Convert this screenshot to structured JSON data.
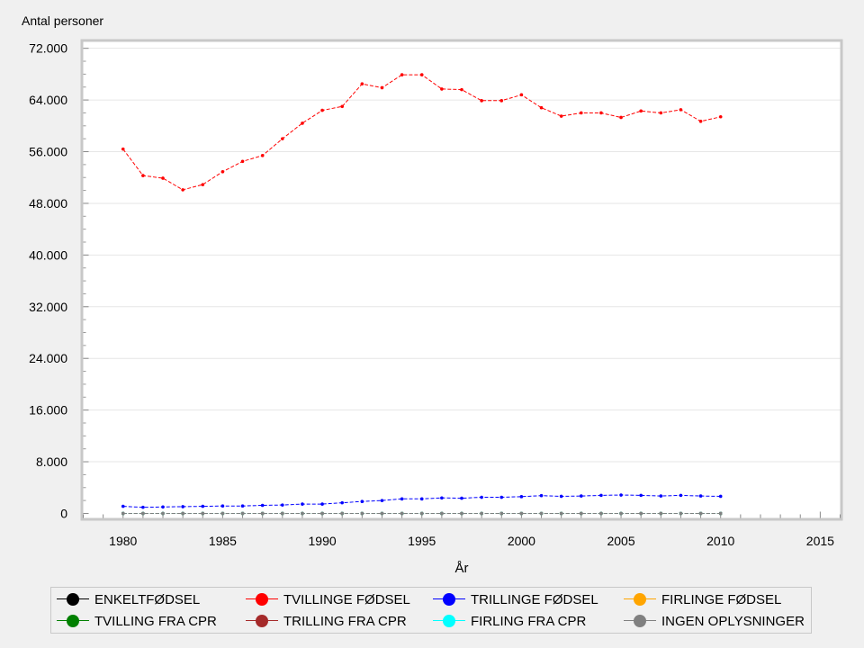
{
  "chart_data": {
    "type": "line",
    "ylabel": "Antal personer",
    "xlabel": "År",
    "xlim": [
      1978,
      2016
    ],
    "ylim": [
      -700,
      73000
    ],
    "x_ticks": [
      1980,
      1985,
      1990,
      1995,
      2000,
      2005,
      2010,
      2015
    ],
    "y_ticks": [
      0,
      8000,
      16000,
      24000,
      32000,
      40000,
      48000,
      56000,
      64000,
      72000
    ],
    "y_tick_labels": [
      "0",
      "8.000",
      "16.000",
      "24.000",
      "32.000",
      "40.000",
      "48.000",
      "56.000",
      "64.000",
      "72.000"
    ],
    "grid": "horizontal",
    "legend_position": "bottom",
    "x": [
      1980,
      1981,
      1982,
      1983,
      1984,
      1985,
      1986,
      1987,
      1988,
      1989,
      1990,
      1991,
      1992,
      1993,
      1994,
      1995,
      1996,
      1997,
      1998,
      1999,
      2000,
      2001,
      2002,
      2003,
      2004,
      2005,
      2006,
      2007,
      2008,
      2009,
      2010
    ],
    "series": [
      {
        "name": "ENKELTFØDSEL",
        "color": "#000000",
        "values": [
          0,
          0,
          0,
          0,
          0,
          0,
          0,
          0,
          0,
          0,
          0,
          0,
          0,
          0,
          0,
          0,
          0,
          0,
          0,
          0,
          0,
          0,
          0,
          0,
          0,
          0,
          0,
          0,
          0,
          0,
          0
        ]
      },
      {
        "name": "TVILLINGE FØDSEL",
        "color": "#ff0000",
        "values": [
          56400,
          52300,
          51900,
          50100,
          50900,
          52900,
          54500,
          55400,
          58000,
          60400,
          62400,
          63000,
          66500,
          65900,
          67900,
          67900,
          65700,
          65600,
          63900,
          63900,
          64800,
          62800,
          61500,
          62000,
          62000,
          61300,
          62300,
          62000,
          62500,
          60700,
          61400
        ]
      },
      {
        "name": "TRILLINGE FØDSEL",
        "color": "#0000ff",
        "values": [
          1100,
          950,
          1000,
          1050,
          1100,
          1150,
          1150,
          1250,
          1300,
          1450,
          1450,
          1650,
          1850,
          2000,
          2250,
          2250,
          2400,
          2350,
          2500,
          2500,
          2600,
          2750,
          2650,
          2700,
          2800,
          2850,
          2800,
          2700,
          2800,
          2700,
          2650
        ]
      },
      {
        "name": "FIRLINGE FØDSEL",
        "color": "#ffa500",
        "values": [
          0,
          0,
          0,
          0,
          0,
          0,
          0,
          0,
          0,
          0,
          0,
          0,
          0,
          0,
          0,
          0,
          0,
          0,
          0,
          0,
          0,
          0,
          0,
          0,
          0,
          0,
          0,
          0,
          0,
          0,
          0
        ]
      },
      {
        "name": "TVILLING FRA CPR",
        "color": "#008000",
        "values": [
          0,
          0,
          0,
          0,
          0,
          0,
          0,
          0,
          0,
          0,
          0,
          0,
          0,
          0,
          0,
          0,
          0,
          0,
          0,
          0,
          0,
          0,
          0,
          0,
          0,
          0,
          0,
          0,
          0,
          0,
          0
        ]
      },
      {
        "name": "TRILLING FRA CPR",
        "color": "#a52a2a",
        "values": [
          0,
          0,
          0,
          0,
          0,
          0,
          0,
          0,
          0,
          0,
          0,
          0,
          0,
          0,
          0,
          0,
          0,
          0,
          0,
          0,
          0,
          0,
          0,
          0,
          0,
          0,
          0,
          0,
          0,
          0,
          0
        ]
      },
      {
        "name": "FIRLING FRA CPR",
        "color": "#00ffff",
        "values": [
          0,
          0,
          0,
          0,
          0,
          0,
          0,
          0,
          0,
          0,
          0,
          0,
          0,
          0,
          0,
          0,
          0,
          0,
          0,
          0,
          0,
          0,
          0,
          0,
          0,
          0,
          0,
          0,
          0,
          0,
          0
        ]
      },
      {
        "name": "INGEN OPLYSNINGER",
        "color": "#808080",
        "values": [
          0,
          0,
          0,
          0,
          0,
          0,
          0,
          0,
          0,
          0,
          0,
          0,
          0,
          0,
          0,
          0,
          0,
          0,
          0,
          0,
          0,
          0,
          0,
          0,
          0,
          0,
          0,
          0,
          0,
          0,
          0
        ]
      }
    ]
  }
}
